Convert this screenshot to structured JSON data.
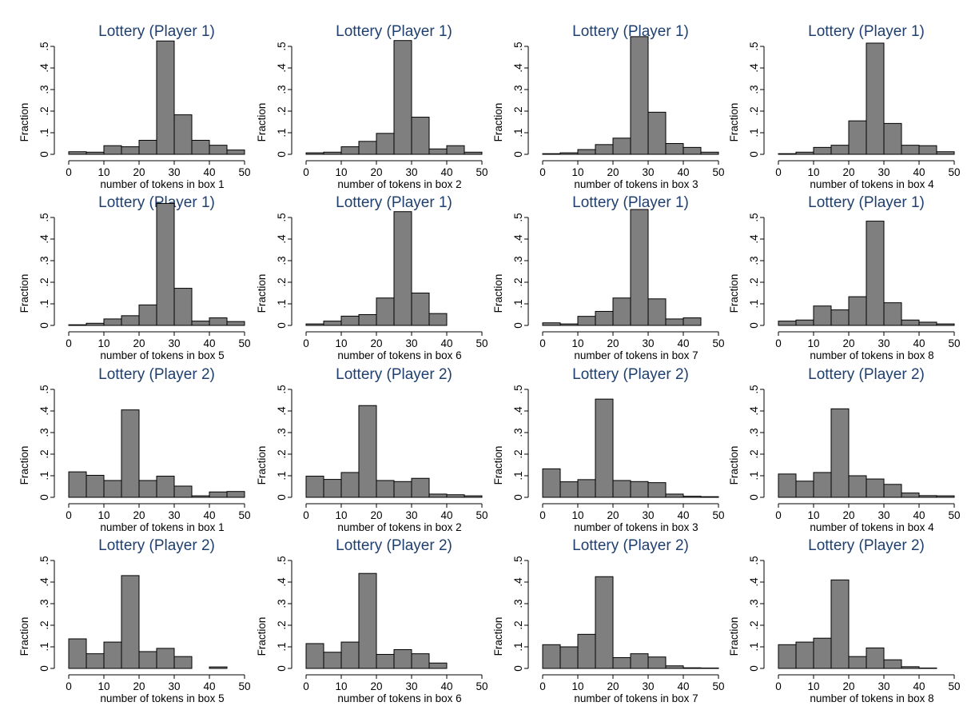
{
  "colors": {
    "bar_fill": "#7f7f7f",
    "bar_stroke": "#000000",
    "title": "#1f3f6e"
  },
  "chart_data": [
    {
      "type": "bar",
      "title": "Lottery (Player 1)",
      "xlabel": "number of tokens in box 1",
      "ylabel": "Fraction",
      "xlim": [
        0,
        50
      ],
      "ylim": [
        0,
        0.5
      ],
      "bin_width": 5,
      "bin_starts": [
        0,
        5,
        10,
        15,
        20,
        25,
        30,
        35,
        40,
        45
      ],
      "xticks": [
        0,
        10,
        20,
        30,
        40,
        50
      ],
      "yticks": [
        0,
        0.1,
        0.2,
        0.3,
        0.4,
        0.5
      ],
      "ytick_labels": [
        "0",
        ".1",
        ".2",
        ".3",
        ".4",
        ".5"
      ],
      "values": [
        0.012,
        0.01,
        0.04,
        0.035,
        0.065,
        0.525,
        0.183,
        0.065,
        0.042,
        0.02
      ]
    },
    {
      "type": "bar",
      "title": "Lottery (Player 1)",
      "xlabel": "number of tokens in box 2",
      "ylabel": "Fraction",
      "xlim": [
        0,
        50
      ],
      "ylim": [
        0,
        0.5
      ],
      "bin_width": 5,
      "bin_starts": [
        0,
        5,
        10,
        15,
        20,
        25,
        30,
        35,
        40,
        45
      ],
      "xticks": [
        0,
        10,
        20,
        30,
        40,
        50
      ],
      "yticks": [
        0,
        0.1,
        0.2,
        0.3,
        0.4,
        0.5
      ],
      "ytick_labels": [
        "0",
        ".1",
        ".2",
        ".3",
        ".4",
        ".5"
      ],
      "values": [
        0.007,
        0.01,
        0.035,
        0.06,
        0.097,
        0.527,
        0.172,
        0.025,
        0.04,
        0.01
      ]
    },
    {
      "type": "bar",
      "title": "Lottery (Player 1)",
      "xlabel": "number of tokens in box 3",
      "ylabel": "Fraction",
      "xlim": [
        0,
        50
      ],
      "ylim": [
        0,
        0.5
      ],
      "bin_width": 5,
      "bin_starts": [
        0,
        5,
        10,
        15,
        20,
        25,
        30,
        35,
        40,
        45
      ],
      "xticks": [
        0,
        10,
        20,
        30,
        40,
        50
      ],
      "yticks": [
        0,
        0.1,
        0.2,
        0.3,
        0.4,
        0.5
      ],
      "ytick_labels": [
        "0",
        ".1",
        ".2",
        ".3",
        ".4",
        ".5"
      ],
      "values": [
        0.003,
        0.007,
        0.022,
        0.045,
        0.075,
        0.545,
        0.195,
        0.05,
        0.032,
        0.01
      ]
    },
    {
      "type": "bar",
      "title": "Lottery (Player 1)",
      "xlabel": "number of tokens in box 4",
      "ylabel": "Fraction",
      "xlim": [
        0,
        50
      ],
      "ylim": [
        0,
        0.5
      ],
      "bin_width": 5,
      "bin_starts": [
        0,
        5,
        10,
        15,
        20,
        25,
        30,
        35,
        40,
        45
      ],
      "xticks": [
        0,
        10,
        20,
        30,
        40,
        50
      ],
      "yticks": [
        0,
        0.1,
        0.2,
        0.3,
        0.4,
        0.5
      ],
      "ytick_labels": [
        "0",
        ".1",
        ".2",
        ".3",
        ".4",
        ".5"
      ],
      "values": [
        0.003,
        0.01,
        0.032,
        0.042,
        0.155,
        0.515,
        0.143,
        0.042,
        0.04,
        0.012
      ]
    },
    {
      "type": "bar",
      "title": "Lottery (Player 1)",
      "xlabel": "number of tokens in box 5",
      "ylabel": "Fraction",
      "xlim": [
        0,
        50
      ],
      "ylim": [
        0,
        0.5
      ],
      "bin_width": 5,
      "bin_starts": [
        0,
        5,
        10,
        15,
        20,
        25,
        30,
        35,
        40,
        45
      ],
      "xticks": [
        0,
        10,
        20,
        30,
        40,
        50
      ],
      "yticks": [
        0,
        0.1,
        0.2,
        0.3,
        0.4,
        0.5
      ],
      "ytick_labels": [
        "0",
        ".1",
        ".2",
        ".3",
        ".4",
        ".5"
      ],
      "values": [
        0.003,
        0.01,
        0.03,
        0.045,
        0.095,
        0.565,
        0.172,
        0.02,
        0.035,
        0.018
      ]
    },
    {
      "type": "bar",
      "title": "Lottery (Player 1)",
      "xlabel": "number of tokens in box 6",
      "ylabel": "Fraction",
      "xlim": [
        0,
        50
      ],
      "ylim": [
        0,
        0.5
      ],
      "bin_width": 5,
      "bin_starts": [
        0,
        5,
        10,
        15,
        20,
        25,
        30,
        35,
        40,
        45
      ],
      "xticks": [
        0,
        10,
        20,
        30,
        40,
        50
      ],
      "yticks": [
        0,
        0.1,
        0.2,
        0.3,
        0.4,
        0.5
      ],
      "ytick_labels": [
        "0",
        ".1",
        ".2",
        ".3",
        ".4",
        ".5"
      ],
      "values": [
        0.007,
        0.02,
        0.043,
        0.05,
        0.127,
        0.527,
        0.15,
        0.055,
        0.0,
        0.0
      ]
    },
    {
      "type": "bar",
      "title": "Lottery (Player 1)",
      "xlabel": "number of tokens in box 7",
      "ylabel": "Fraction",
      "xlim": [
        0,
        50
      ],
      "ylim": [
        0,
        0.5
      ],
      "bin_width": 5,
      "bin_starts": [
        0,
        5,
        10,
        15,
        20,
        25,
        30,
        35,
        40,
        45
      ],
      "xticks": [
        0,
        10,
        20,
        30,
        40,
        50
      ],
      "yticks": [
        0,
        0.1,
        0.2,
        0.3,
        0.4,
        0.5
      ],
      "ytick_labels": [
        "0",
        ".1",
        ".2",
        ".3",
        ".4",
        ".5"
      ],
      "values": [
        0.012,
        0.007,
        0.042,
        0.065,
        0.127,
        0.537,
        0.123,
        0.03,
        0.035,
        0.0
      ]
    },
    {
      "type": "bar",
      "title": "Lottery (Player 1)",
      "xlabel": "number of tokens in box 8",
      "ylabel": "Fraction",
      "xlim": [
        0,
        50
      ],
      "ylim": [
        0,
        0.5
      ],
      "bin_width": 5,
      "bin_starts": [
        0,
        5,
        10,
        15,
        20,
        25,
        30,
        35,
        40,
        45
      ],
      "xticks": [
        0,
        10,
        20,
        30,
        40,
        50
      ],
      "yticks": [
        0,
        0.1,
        0.2,
        0.3,
        0.4,
        0.5
      ],
      "ytick_labels": [
        "0",
        ".1",
        ".2",
        ".3",
        ".4",
        ".5"
      ],
      "values": [
        0.02,
        0.025,
        0.09,
        0.072,
        0.133,
        0.483,
        0.105,
        0.025,
        0.015,
        0.007
      ]
    },
    {
      "type": "bar",
      "title": "Lottery (Player 2)",
      "xlabel": "number of tokens in box 1",
      "ylabel": "Fraction",
      "xlim": [
        0,
        50
      ],
      "ylim": [
        0,
        0.5
      ],
      "bin_width": 5,
      "bin_starts": [
        0,
        5,
        10,
        15,
        20,
        25,
        30,
        35,
        40,
        45
      ],
      "xticks": [
        0,
        10,
        20,
        30,
        40,
        50
      ],
      "yticks": [
        0,
        0.1,
        0.2,
        0.3,
        0.4,
        0.5
      ],
      "ytick_labels": [
        "0",
        ".1",
        ".2",
        ".3",
        ".4",
        ".5"
      ],
      "values": [
        0.118,
        0.102,
        0.078,
        0.405,
        0.078,
        0.098,
        0.052,
        0.007,
        0.025,
        0.027
      ]
    },
    {
      "type": "bar",
      "title": "Lottery (Player 2)",
      "xlabel": "number of tokens in box 2",
      "ylabel": "Fraction",
      "xlim": [
        0,
        50
      ],
      "ylim": [
        0,
        0.5
      ],
      "bin_width": 5,
      "bin_starts": [
        0,
        5,
        10,
        15,
        20,
        25,
        30,
        35,
        40,
        45
      ],
      "xticks": [
        0,
        10,
        20,
        30,
        40,
        50
      ],
      "yticks": [
        0,
        0.1,
        0.2,
        0.3,
        0.4,
        0.5
      ],
      "ytick_labels": [
        "0",
        ".1",
        ".2",
        ".3",
        ".4",
        ".5"
      ],
      "values": [
        0.098,
        0.083,
        0.115,
        0.425,
        0.078,
        0.073,
        0.088,
        0.015,
        0.012,
        0.007
      ]
    },
    {
      "type": "bar",
      "title": "Lottery (Player 2)",
      "xlabel": "number of tokens in box 3",
      "ylabel": "Fraction",
      "xlim": [
        0,
        50
      ],
      "ylim": [
        0,
        0.5
      ],
      "bin_width": 5,
      "bin_starts": [
        0,
        5,
        10,
        15,
        20,
        25,
        30,
        35,
        40,
        45
      ],
      "xticks": [
        0,
        10,
        20,
        30,
        40,
        50
      ],
      "yticks": [
        0,
        0.1,
        0.2,
        0.3,
        0.4,
        0.5
      ],
      "ytick_labels": [
        "0",
        ".1",
        ".2",
        ".3",
        ".4",
        ".5"
      ],
      "values": [
        0.132,
        0.072,
        0.082,
        0.455,
        0.078,
        0.073,
        0.068,
        0.015,
        0.005,
        0.003
      ]
    },
    {
      "type": "bar",
      "title": "Lottery (Player 2)",
      "xlabel": "number of tokens in box 4",
      "ylabel": "Fraction",
      "xlim": [
        0,
        50
      ],
      "ylim": [
        0,
        0.5
      ],
      "bin_width": 5,
      "bin_starts": [
        0,
        5,
        10,
        15,
        20,
        25,
        30,
        35,
        40,
        45
      ],
      "xticks": [
        0,
        10,
        20,
        30,
        40,
        50
      ],
      "yticks": [
        0,
        0.1,
        0.2,
        0.3,
        0.4,
        0.5
      ],
      "ytick_labels": [
        "0",
        ".1",
        ".2",
        ".3",
        ".4",
        ".5"
      ],
      "values": [
        0.108,
        0.075,
        0.115,
        0.41,
        0.1,
        0.085,
        0.06,
        0.02,
        0.008,
        0.007
      ]
    },
    {
      "type": "bar",
      "title": "Lottery (Player 2)",
      "xlabel": "number of tokens in box 5",
      "ylabel": "Fraction",
      "xlim": [
        0,
        50
      ],
      "ylim": [
        0,
        0.5
      ],
      "bin_width": 5,
      "bin_starts": [
        0,
        5,
        10,
        15,
        20,
        25,
        30,
        35,
        40,
        45
      ],
      "xticks": [
        0,
        10,
        20,
        30,
        40,
        50
      ],
      "yticks": [
        0,
        0.1,
        0.2,
        0.3,
        0.4,
        0.5
      ],
      "ytick_labels": [
        "0",
        ".1",
        ".2",
        ".3",
        ".4",
        ".5"
      ],
      "values": [
        0.137,
        0.068,
        0.122,
        0.43,
        0.078,
        0.093,
        0.055,
        0.0,
        0.007,
        0.0
      ]
    },
    {
      "type": "bar",
      "title": "Lottery (Player 2)",
      "xlabel": "number of tokens in box 6",
      "ylabel": "Fraction",
      "xlim": [
        0,
        50
      ],
      "ylim": [
        0,
        0.5
      ],
      "bin_width": 5,
      "bin_starts": [
        0,
        5,
        10,
        15,
        20,
        25,
        30,
        35,
        40,
        45
      ],
      "xticks": [
        0,
        10,
        20,
        30,
        40,
        50
      ],
      "yticks": [
        0,
        0.1,
        0.2,
        0.3,
        0.4,
        0.5
      ],
      "ytick_labels": [
        "0",
        ".1",
        ".2",
        ".3",
        ".4",
        ".5"
      ],
      "values": [
        0.115,
        0.075,
        0.122,
        0.44,
        0.065,
        0.087,
        0.068,
        0.025,
        0.0,
        0.0
      ]
    },
    {
      "type": "bar",
      "title": "Lottery (Player 2)",
      "xlabel": "number of tokens in box 7",
      "ylabel": "Fraction",
      "xlim": [
        0,
        50
      ],
      "ylim": [
        0,
        0.5
      ],
      "bin_width": 5,
      "bin_starts": [
        0,
        5,
        10,
        15,
        20,
        25,
        30,
        35,
        40,
        45
      ],
      "xticks": [
        0,
        10,
        20,
        30,
        40,
        50
      ],
      "yticks": [
        0,
        0.1,
        0.2,
        0.3,
        0.4,
        0.5
      ],
      "ytick_labels": [
        "0",
        ".1",
        ".2",
        ".3",
        ".4",
        ".5"
      ],
      "values": [
        0.11,
        0.1,
        0.158,
        0.425,
        0.05,
        0.068,
        0.053,
        0.012,
        0.003,
        0.002
      ]
    },
    {
      "type": "bar",
      "title": "Lottery (Player 2)",
      "xlabel": "number of tokens in box 8",
      "ylabel": "Fraction",
      "xlim": [
        0,
        50
      ],
      "ylim": [
        0,
        0.5
      ],
      "bin_width": 5,
      "bin_starts": [
        0,
        5,
        10,
        15,
        20,
        25,
        30,
        35,
        40,
        45
      ],
      "xticks": [
        0,
        10,
        20,
        30,
        40,
        50
      ],
      "yticks": [
        0,
        0.1,
        0.2,
        0.3,
        0.4,
        0.5
      ],
      "ytick_labels": [
        "0",
        ".1",
        ".2",
        ".3",
        ".4",
        ".5"
      ],
      "values": [
        0.11,
        0.122,
        0.14,
        0.41,
        0.055,
        0.095,
        0.04,
        0.008,
        0.002,
        0.0
      ]
    }
  ]
}
